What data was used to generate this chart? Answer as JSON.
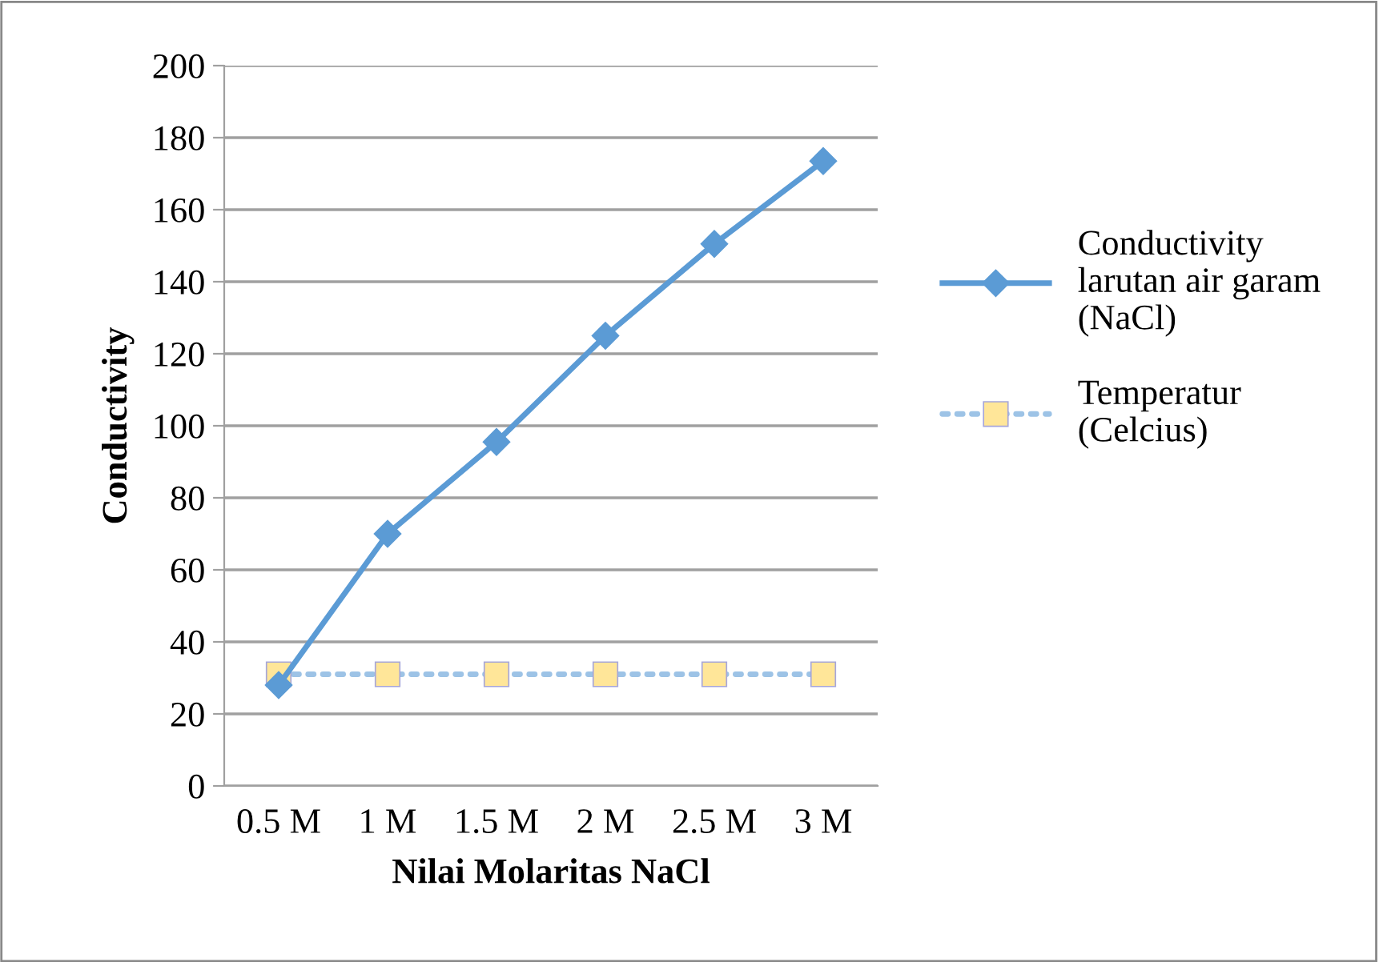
{
  "chart_data": {
    "type": "line",
    "xlabel": "Nilai Molaritas NaCl",
    "ylabel": "Conductivity",
    "categories": [
      "0.5 M",
      "1 M",
      "1.5 M",
      "2 M",
      "2.5 M",
      "3 M"
    ],
    "series": [
      {
        "name": "Conductivity larutan air garam (NaCl)",
        "color": "#5b9bd5",
        "values": [
          28,
          70,
          95.5,
          125,
          150.5,
          173.5
        ],
        "marker": "diamond",
        "line_style": "solid"
      },
      {
        "name": "Temperatur (Celcius)",
        "color": "#ffe699",
        "values": [
          31,
          31,
          31,
          31,
          31,
          31
        ],
        "marker": "square",
        "line_style": "dotted"
      }
    ],
    "ylim": [
      0,
      200
    ],
    "yticks": [
      0,
      20,
      40,
      60,
      80,
      100,
      120,
      140,
      160,
      180,
      200
    ],
    "grid": "y",
    "legend": "right"
  }
}
